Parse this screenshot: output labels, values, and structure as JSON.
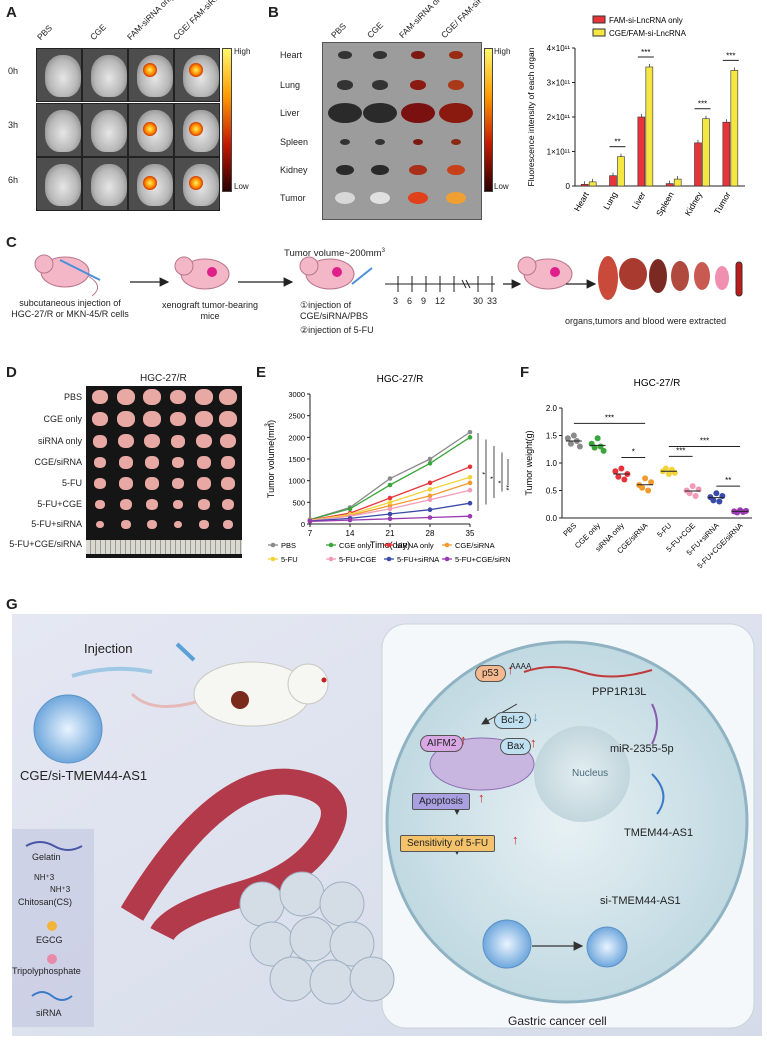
{
  "panels": {
    "A": {
      "letter": "A",
      "columns": [
        "PBS",
        "CGE",
        "FAM-siRNA only",
        "CGE/ FAM-siRNA"
      ],
      "rows": [
        "0h",
        "3h",
        "6h"
      ],
      "scale_high": "High",
      "scale_low": "Low"
    },
    "B": {
      "letter": "B",
      "columns": [
        "PBS",
        "CGE",
        "FAM-siRNA only",
        "CGE/ FAM-siRNA"
      ],
      "rows": [
        "Heart",
        "Lung",
        "Liver",
        "Spleen",
        "Kidney",
        "Tumor"
      ],
      "scale_high": "High",
      "scale_low": "Low"
    },
    "C": {
      "letter": "C",
      "step1": "subcutaneous injection of HGC-27/R or MKN-45/R cells",
      "step2": "xenograft tumor-bearing mice",
      "step3_title": "Tumor volume~200mm",
      "step3_sup": "3",
      "step3_a": "①injection of CGE/siRNA/PBS",
      "step3_b": "②injection of 5-FU",
      "timeline": [
        "3",
        "6",
        "9",
        "12",
        "30",
        "33"
      ],
      "step4": "organs,tumors and blood were extracted"
    },
    "D": {
      "letter": "D",
      "title": "HGC-27/R",
      "rows": [
        "PBS",
        "CGE only",
        "siRNA only",
        "CGE/siRNA",
        "5-FU",
        "5-FU+CGE",
        "5-FU+siRNA",
        "5-FU+CGE/siRNA"
      ]
    },
    "E": {
      "letter": "E"
    },
    "F": {
      "letter": "F"
    },
    "G": {
      "letter": "G",
      "injection": "Injection",
      "np_label": "CGE/si-TMEM44-AS1",
      "legend": [
        "Gelatin",
        "NH⁺3",
        "NH⁺3",
        "Chitosan(CS)",
        "EGCG",
        "Tripolyphosphate",
        "siRNA"
      ],
      "cell_label": "Gastric cancer cell",
      "nucleus": "Nucleus",
      "p53": "p53",
      "aifm2": "AIFM2",
      "bcl2": "Bcl-2",
      "bax": "Bax",
      "apoptosis": "Apoptosis",
      "sensitivity": "Sensitivity of 5-FU",
      "ppp": "PPP1R13L",
      "aaaa": "AAAA",
      "mir": "miR-2355-5p",
      "tmem": "TMEM44-AS1",
      "sitmem": "si-TMEM44-AS1",
      "up_arrow": "↑",
      "down_arrow": "↓"
    }
  },
  "chart_data": [
    {
      "type": "bar",
      "title": "",
      "ylabel": "Fluorescence intensity of each organ",
      "categories": [
        "Heart",
        "Lung",
        "Liver",
        "Spleen",
        "Kidney",
        "Tumor"
      ],
      "ylim": [
        0,
        400000000000.0
      ],
      "yticks": [
        "0",
        "1×10¹¹",
        "2×10¹¹",
        "3×10¹¹",
        "4×10¹¹"
      ],
      "series": [
        {
          "name": "FAM-si-LncRNA only",
          "color": "#e8333a",
          "values": [
            5000000000.0,
            30000000000.0,
            200000000000.0,
            7000000000.0,
            125000000000.0,
            185000000000.0
          ]
        },
        {
          "name": "CGE/FAM-si-LncRNA",
          "color": "#f5e642",
          "values": [
            12000000000.0,
            85000000000.0,
            345000000000.0,
            20000000000.0,
            195000000000.0,
            335000000000.0
          ]
        }
      ],
      "significance": [
        "",
        "**",
        "***",
        "",
        "***",
        "***"
      ]
    },
    {
      "type": "line",
      "title": "HGC-27/R",
      "xlabel": "Time(day)",
      "ylabel": "Tumor volume(mm3)",
      "ylabel_sup": "3",
      "x": [
        7,
        14,
        21,
        28,
        35
      ],
      "xlim": [
        7,
        35
      ],
      "ylim": [
        0,
        3000
      ],
      "yticks": [
        0,
        500,
        1000,
        1500,
        2000,
        2500,
        3000
      ],
      "series": [
        {
          "name": "PBS",
          "color": "#8a8a8a",
          "marker": "diamond",
          "values": [
            100,
            380,
            1050,
            1500,
            2120
          ]
        },
        {
          "name": "CGE only",
          "color": "#3aa53a",
          "marker": "diamond",
          "values": [
            100,
            350,
            900,
            1400,
            2000
          ]
        },
        {
          "name": "siRNA only",
          "color": "#e8333a",
          "marker": "star",
          "values": [
            90,
            250,
            600,
            950,
            1320
          ]
        },
        {
          "name": "CGE/siRNA",
          "color": "#f39a2e",
          "marker": "star",
          "values": [
            80,
            200,
            420,
            650,
            950
          ]
        },
        {
          "name": "5-FU",
          "color": "#f2d43a",
          "marker": "star",
          "values": [
            85,
            220,
            500,
            800,
            1080
          ]
        },
        {
          "name": "5-FU+CGE",
          "color": "#f29bb8",
          "marker": "diamond",
          "values": [
            80,
            180,
            350,
            560,
            780
          ]
        },
        {
          "name": "5-FU+siRNA",
          "color": "#3a4aa8",
          "marker": "square",
          "values": [
            70,
            130,
            230,
            330,
            480
          ]
        },
        {
          "name": "5-FU+CGE/siRNA",
          "color": "#9a3ab0",
          "marker": "star",
          "values": [
            60,
            90,
            120,
            150,
            180
          ]
        }
      ],
      "significance": [
        "*",
        "*",
        "*",
        "**",
        "**"
      ]
    },
    {
      "type": "scatter",
      "title": "HGC-27/R",
      "ylabel": "Tumor weight(g)",
      "categories": [
        "PBS",
        "CGE only",
        "siRNA only",
        "CGE/siRNA",
        "5-FU",
        "5-FU+CGE",
        "5-FU+siRNA",
        "5-FU+CGE/siRNA"
      ],
      "ylim": [
        0,
        2.0
      ],
      "yticks": [
        0,
        0.5,
        1.0,
        1.5,
        2.0
      ],
      "series": [
        {
          "name": "PBS",
          "color": "#8a8a8a",
          "marker": "circle",
          "values": [
            1.45,
            1.35,
            1.5,
            1.4,
            1.3
          ]
        },
        {
          "name": "CGE only",
          "color": "#3aa53a",
          "marker": "square",
          "values": [
            1.35,
            1.28,
            1.45,
            1.3,
            1.22
          ]
        },
        {
          "name": "siRNA only",
          "color": "#e8333a",
          "marker": "triangle",
          "values": [
            0.85,
            0.75,
            0.9,
            0.7,
            0.8
          ]
        },
        {
          "name": "CGE/siRNA",
          "color": "#f39a2e",
          "marker": "diamond",
          "values": [
            0.6,
            0.55,
            0.72,
            0.5,
            0.65
          ]
        },
        {
          "name": "5-FU",
          "color": "#f2d43a",
          "marker": "triangle-down",
          "values": [
            0.85,
            0.9,
            0.8,
            0.88,
            0.82
          ]
        },
        {
          "name": "5-FU+CGE",
          "color": "#f29bb8",
          "marker": "circle",
          "values": [
            0.5,
            0.45,
            0.58,
            0.4,
            0.52
          ]
        },
        {
          "name": "5-FU+siRNA",
          "color": "#3a4aa8",
          "marker": "square",
          "values": [
            0.38,
            0.32,
            0.45,
            0.3,
            0.4
          ]
        },
        {
          "name": "5-FU+CGE/siRNA",
          "color": "#9a3ab0",
          "marker": "triangle",
          "values": [
            0.12,
            0.1,
            0.14,
            0.11,
            0.13
          ]
        }
      ],
      "significance": [
        "***",
        "*",
        "***",
        "***",
        "**"
      ]
    }
  ]
}
